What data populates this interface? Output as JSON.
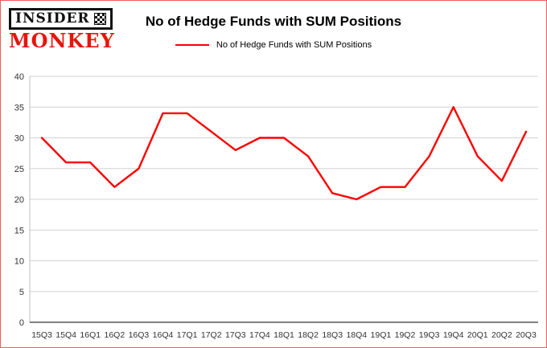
{
  "logo": {
    "top": "INSIDER",
    "bottom": "MONKEY",
    "top_color": "#111111",
    "bottom_color": "#e8140c"
  },
  "header": {
    "title": "No of Hedge Funds with SUM Positions"
  },
  "legend": {
    "label": "No of Hedge Funds with SUM Positions"
  },
  "chart_data": {
    "type": "line",
    "title": "No of Hedge Funds with SUM Positions",
    "xlabel": "",
    "ylabel": "",
    "categories": [
      "15Q3",
      "15Q4",
      "16Q1",
      "16Q2",
      "16Q3",
      "16Q4",
      "17Q1",
      "17Q2",
      "17Q3",
      "17Q4",
      "18Q1",
      "18Q2",
      "18Q3",
      "18Q4",
      "19Q1",
      "19Q2",
      "19Q3",
      "19Q4",
      "20Q1",
      "20Q2",
      "20Q3"
    ],
    "series": [
      {
        "name": "No of Hedge Funds with SUM Positions",
        "color": "#ff0000",
        "values": [
          30,
          26,
          26,
          22,
          25,
          34,
          34,
          31,
          28,
          30,
          30,
          27,
          21,
          20,
          22,
          22,
          27,
          35,
          27,
          23,
          31
        ]
      }
    ],
    "ylim": [
      0,
      40
    ],
    "yticks": [
      0,
      5,
      10,
      15,
      20,
      25,
      30,
      35,
      40
    ],
    "grid": true,
    "legend_position": "top"
  },
  "colors": {
    "frame_border": "#f25c5c",
    "line": "#ff0000",
    "grid": "#d3d3d3",
    "axis": "#333333",
    "y_axis": "#c0c0c0",
    "tick_text": "#333333"
  }
}
